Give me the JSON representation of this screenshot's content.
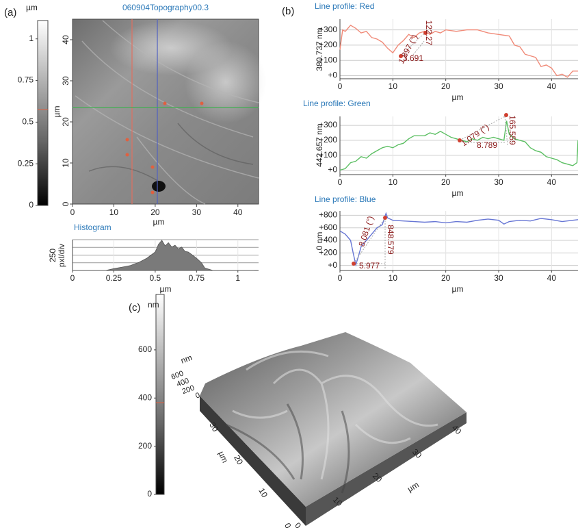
{
  "panel_labels": {
    "a": "(a)",
    "b": "(b)",
    "c": "(c)"
  },
  "topography": {
    "title": "060904Topography00.3",
    "xlabel": "µm",
    "ylabel": "µm",
    "xlim": [
      0,
      45
    ],
    "ylim": [
      0,
      45
    ],
    "xticks": [
      0,
      10,
      20,
      30,
      40
    ],
    "yticks": [
      0,
      10,
      20,
      30,
      40
    ],
    "colorbar": {
      "unit": "µm",
      "lim": [
        0,
        1.11
      ],
      "ticks": [
        0,
        0.25,
        0.5,
        0.75,
        1
      ]
    }
  },
  "chart_data": [
    {
      "type": "area",
      "title": "Histogram",
      "ylabel": [
        "250",
        "pxl/div"
      ],
      "xlabel": "µm",
      "x": [
        0,
        0.2,
        0.25,
        0.3,
        0.35,
        0.4,
        0.45,
        0.5,
        0.52,
        0.54,
        0.56,
        0.58,
        0.6,
        0.62,
        0.64,
        0.66,
        0.68,
        0.7,
        0.72,
        0.75,
        0.78,
        0.8,
        0.85,
        1.1
      ],
      "values": [
        0,
        0,
        60,
        110,
        160,
        260,
        400,
        600,
        850,
        980,
        800,
        900,
        760,
        820,
        700,
        760,
        620,
        600,
        520,
        400,
        250,
        80,
        0,
        0
      ],
      "color": "#7a7a7a",
      "xlim": [
        0,
        1.125
      ],
      "xticks": [
        0,
        0.25,
        0.5,
        0.75,
        1
      ],
      "ylim": [
        0,
        1000
      ],
      "grid_lines": [
        250,
        500,
        750,
        1000
      ]
    },
    {
      "type": "line",
      "title": "Line profile: Red",
      "ylabel": "380.737 nm",
      "xlabel": "µm",
      "x": [
        0,
        0.5,
        1,
        2,
        3,
        4,
        5,
        6,
        7,
        8,
        9,
        10,
        11,
        12,
        13,
        14,
        15,
        16,
        17,
        18,
        19,
        20,
        22,
        24,
        26,
        28,
        30,
        32,
        33,
        34,
        35,
        36,
        37,
        38,
        39,
        40,
        41,
        42,
        43,
        44,
        45
      ],
      "values": [
        170,
        300,
        290,
        330,
        310,
        280,
        290,
        250,
        240,
        220,
        180,
        150,
        200,
        230,
        270,
        250,
        280,
        290,
        270,
        290,
        280,
        300,
        290,
        300,
        300,
        280,
        270,
        260,
        200,
        190,
        140,
        130,
        120,
        60,
        70,
        50,
        0,
        10,
        -10,
        30,
        30
      ],
      "color": "#f08a78",
      "xlim": [
        0,
        45
      ],
      "xticks": [
        0,
        10,
        20,
        30,
        40
      ],
      "ylim": [
        -20,
        370
      ],
      "yticks": [
        {
          "value": 0,
          "label": "+0"
        },
        {
          "value": 100,
          "label": "+100"
        },
        {
          "value": 200,
          "label": "+200"
        },
        {
          "value": 300,
          "label": "+300"
        }
      ],
      "annotations": [
        "1.897 (°)",
        "122.27",
        "3.691"
      ]
    },
    {
      "type": "line",
      "title": "Line profile: Green",
      "ylabel": "442.657 nm",
      "xlabel": "µm",
      "x": [
        0,
        1,
        2,
        3,
        4,
        5,
        6,
        7,
        8,
        9,
        10,
        11,
        12,
        13,
        14,
        15,
        16,
        17,
        18,
        19,
        20,
        21,
        22,
        23,
        24,
        25,
        26,
        27,
        28,
        29,
        30,
        31,
        31.5,
        32,
        33,
        34,
        35,
        36,
        37,
        38,
        39,
        40,
        41,
        42,
        43,
        44,
        44.8,
        45
      ],
      "values": [
        0,
        10,
        50,
        60,
        90,
        80,
        110,
        130,
        150,
        160,
        150,
        170,
        180,
        210,
        230,
        230,
        230,
        250,
        240,
        260,
        240,
        220,
        210,
        200,
        190,
        210,
        200,
        220,
        210,
        220,
        210,
        200,
        330,
        240,
        210,
        200,
        190,
        150,
        130,
        120,
        90,
        80,
        70,
        50,
        40,
        30,
        50,
        200
      ],
      "color": "#5cbf63",
      "xlim": [
        0,
        45
      ],
      "xticks": [
        0,
        10,
        20,
        30,
        40
      ],
      "ylim": [
        -30,
        360
      ],
      "yticks": [
        {
          "value": 0,
          "label": "+0"
        },
        {
          "value": 100,
          "label": "+100"
        },
        {
          "value": 200,
          "label": "+200"
        },
        {
          "value": 300,
          "label": "+300"
        }
      ],
      "annotations": [
        "1.079 (°)",
        "8.789",
        "165.559"
      ]
    },
    {
      "type": "line",
      "title": "Line profile: Blue",
      "ylabel": "0 nm",
      "xlabel": "µm",
      "x": [
        0,
        1,
        2,
        2.5,
        3,
        3.5,
        4,
        5,
        6,
        7,
        8,
        8.7,
        9,
        10,
        12,
        14,
        16,
        18,
        20,
        22,
        24,
        26,
        28,
        30,
        31,
        32,
        34,
        36,
        38,
        40,
        42,
        44,
        45
      ],
      "values": [
        550,
        500,
        400,
        200,
        10,
        150,
        300,
        400,
        500,
        600,
        650,
        830,
        760,
        720,
        710,
        700,
        690,
        700,
        680,
        700,
        690,
        720,
        740,
        720,
        660,
        700,
        720,
        710,
        750,
        730,
        700,
        720,
        730
      ],
      "color": "#6675d4",
      "xlim": [
        0,
        45
      ],
      "xticks": [
        0,
        10,
        20,
        30,
        40
      ],
      "ylim": [
        -80,
        870
      ],
      "yticks": [
        {
          "value": 0,
          "label": "+0"
        },
        {
          "value": 200,
          "label": "+200"
        },
        {
          "value": 400,
          "label": "+400"
        },
        {
          "value": 600,
          "label": "+600"
        },
        {
          "value": 800,
          "label": "+800"
        }
      ],
      "annotations": [
        "8.081 (°)",
        "848.579",
        "5.977"
      ]
    }
  ],
  "render_3d": {
    "colorbar": {
      "unit": "nm",
      "lim": [
        0,
        830
      ],
      "ticks": [
        0,
        200,
        400,
        600
      ]
    },
    "z_unit": "nm",
    "zticks": [
      0,
      200,
      400,
      600
    ],
    "xlabel": "µm",
    "xticks": [
      0,
      10,
      20,
      30,
      40
    ],
    "ylabel": "µm",
    "yticks": [
      0,
      10,
      20,
      30
    ]
  }
}
